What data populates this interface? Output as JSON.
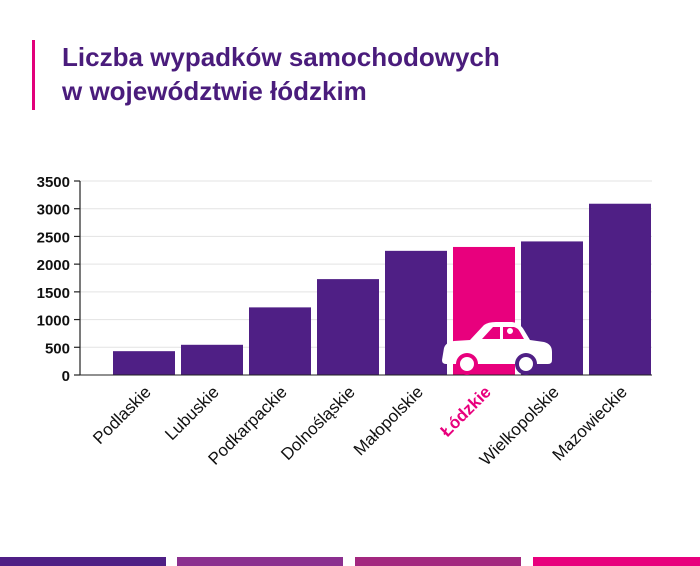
{
  "title_lines": [
    "Liczba wypadków samochodowych",
    "w województwie łódzkim"
  ],
  "chart_data": {
    "type": "bar",
    "title": "Liczba wypadków samochodowych w województwie łódzkim",
    "categories": [
      "Podlaskie",
      "Lubuskie",
      "Podkarpackie",
      "Dolnośląskie",
      "Małopolskie",
      "Łódzkie",
      "Wielkopolskie",
      "Mazowieckie"
    ],
    "values": [
      430,
      545,
      1220,
      1730,
      2240,
      2310,
      2410,
      3090
    ],
    "highlight": "Łódzkie",
    "xlabel": "",
    "ylabel": "",
    "ylim": [
      0,
      3500
    ],
    "yticks": [
      0,
      500,
      1000,
      1500,
      2000,
      2500,
      3000,
      3500
    ],
    "grid": true
  },
  "colors": {
    "bar": "#4f1f85",
    "highlight": "#e8007d",
    "title": "#4a1c7c",
    "accent": "#e2007a",
    "stripes": [
      "#4f1f85",
      "#8b2f8f",
      "#a3277f",
      "#e8007d"
    ]
  },
  "icons": {
    "highlight_icon": "car-icon"
  }
}
